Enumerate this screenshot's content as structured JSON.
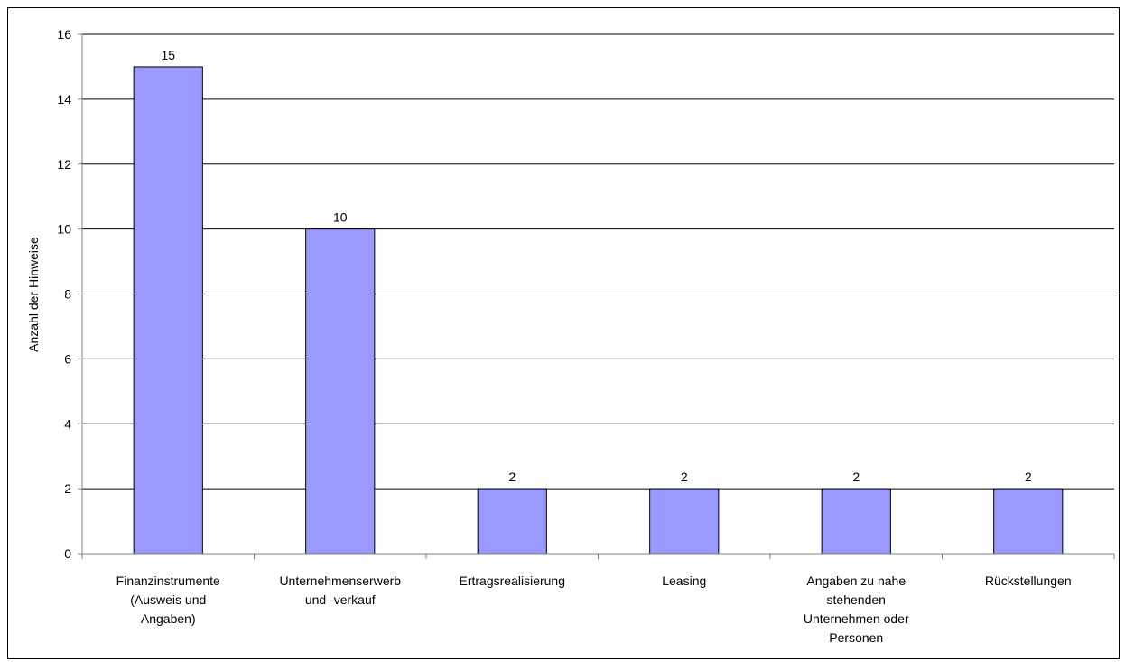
{
  "chart_data": {
    "type": "bar",
    "categories": [
      [
        "Finanzinstrumente",
        "(Ausweis und",
        "Angaben)"
      ],
      [
        "Unternehmenserwerb",
        "und -verkauf"
      ],
      [
        "Ertragsrealisierung"
      ],
      [
        "Leasing"
      ],
      [
        "Angaben zu nahe",
        "stehenden",
        "Unternehmen oder",
        "Personen"
      ],
      [
        "Rückstellungen"
      ]
    ],
    "values": [
      15,
      10,
      2,
      2,
      2,
      2
    ],
    "data_labels": [
      "15",
      "10",
      "2",
      "2",
      "2",
      "2"
    ],
    "ylabel": "Anzahl der Hinweise",
    "xlabel": "",
    "title": "",
    "ylim": [
      0,
      16
    ],
    "yticks": [
      0,
      2,
      4,
      6,
      8,
      10,
      12,
      14,
      16
    ],
    "grid": true,
    "legend": "none",
    "colors": {
      "bar_fill": "#9999ff",
      "bar_stroke": "#000000",
      "grid": "#000000",
      "axis": "#808080"
    }
  }
}
